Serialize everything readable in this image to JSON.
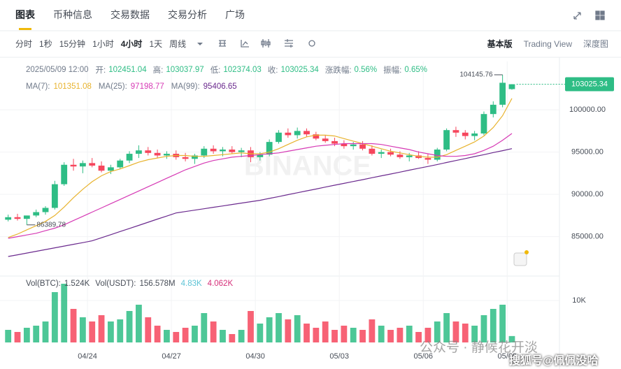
{
  "tabs": [
    "图表",
    "币种信息",
    "交易数据",
    "交易分析",
    "广场"
  ],
  "intervals": [
    "分时",
    "1秒",
    "15分钟",
    "1小时",
    "4小时",
    "1天",
    "周线"
  ],
  "views": [
    "基本版",
    "Trading View",
    "深度图"
  ],
  "info": {
    "date": "2025/05/09 12:00",
    "fields": [
      {
        "label": "开:",
        "value": "102451.04"
      },
      {
        "label": "高:",
        "value": "103037.97"
      },
      {
        "label": "低:",
        "value": "102374.03"
      },
      {
        "label": "收:",
        "value": "103025.34"
      },
      {
        "label": "涨跌幅:",
        "value": "0.56%"
      },
      {
        "label": "振幅:",
        "value": "0.65%"
      }
    ]
  },
  "vol_legend": [
    {
      "label": "Vol(BTC):",
      "value": "1.524K"
    },
    {
      "label": "Vol(USDT):",
      "value": "156.578M"
    },
    {
      "label": "",
      "value": "4.83K",
      "color": "#5ec4d6"
    },
    {
      "label": "",
      "value": "4.062K",
      "color": "#d6307a"
    }
  ],
  "watermark": "BINANCE",
  "footer_watermark": "公众号 · 静候花开淡",
  "footer_credit": "搜狐号@佩佩没哈",
  "chart_data": [
    {
      "type": "candlestick",
      "up_color": "#2ebd85",
      "down_color": "#f6465d",
      "open": [
        87000,
        87300,
        87100,
        87500,
        87900,
        88400,
        91200,
        93500,
        93300,
        93700,
        93400,
        92800,
        93200,
        94000,
        94800,
        95200,
        94900,
        94600,
        94800,
        94400,
        94200,
        94600,
        95400,
        95100,
        95300,
        95000,
        95200,
        94400,
        94700,
        96200,
        97300,
        97000,
        97500,
        97100,
        96600,
        96300,
        96000,
        95700,
        95900,
        95400,
        94800,
        95000,
        94700,
        94400,
        94600,
        94300,
        94100,
        95300,
        97600,
        97300,
        96900,
        97200,
        99500,
        100600,
        102451.04
      ],
      "high": [
        87600,
        87700,
        87400,
        88200,
        88600,
        91600,
        93800,
        94200,
        94000,
        94300,
        93900,
        93500,
        94200,
        95100,
        95800,
        95600,
        95300,
        95100,
        95200,
        94900,
        94800,
        95700,
        95800,
        95600,
        95700,
        95500,
        95600,
        95000,
        96500,
        97600,
        97800,
        97900,
        97800,
        97400,
        97000,
        96700,
        96400,
        96200,
        96300,
        95800,
        95300,
        95400,
        95100,
        94900,
        95100,
        94800,
        95500,
        97800,
        98000,
        97600,
        97500,
        99800,
        101000,
        104145.76,
        103037.97
      ],
      "low": [
        86800,
        86900,
        86389.78,
        87300,
        87600,
        88200,
        91000,
        92800,
        92500,
        93200,
        92600,
        92400,
        93000,
        93700,
        94300,
        94600,
        94300,
        94200,
        94100,
        93900,
        93600,
        94300,
        94800,
        94500,
        94800,
        94400,
        93800,
        94000,
        94500,
        96000,
        96700,
        96600,
        96800,
        96400,
        96100,
        95700,
        95400,
        95300,
        95200,
        94600,
        94300,
        94500,
        94200,
        93900,
        94200,
        93600,
        93900,
        95100,
        96800,
        96500,
        96400,
        97000,
        99100,
        100300,
        102374.03
      ],
      "close": [
        87300,
        87100,
        87500,
        87900,
        88400,
        91200,
        93500,
        93300,
        93700,
        93400,
        92800,
        93200,
        94000,
        94800,
        95200,
        94900,
        94600,
        94800,
        94400,
        94200,
        94600,
        95400,
        95100,
        95300,
        95000,
        95200,
        94400,
        94700,
        96200,
        97300,
        97000,
        97500,
        97100,
        96600,
        96300,
        96000,
        95700,
        95900,
        95400,
        94800,
        95000,
        94700,
        94400,
        94600,
        94300,
        94100,
        95300,
        97600,
        97300,
        96900,
        97200,
        99500,
        100600,
        103200,
        103025.34
      ],
      "series": [
        {
          "name": "MA(7):",
          "color": "#e8b32e",
          "values": [
            84900,
            85300,
            85800,
            86300,
            86800,
            87500,
            88500,
            89600,
            90600,
            91500,
            92200,
            92700,
            93000,
            93400,
            93800,
            94100,
            94300,
            94500,
            94600,
            94600,
            94500,
            94500,
            94600,
            94700,
            94800,
            94900,
            94800,
            94800,
            95000,
            95400,
            95900,
            96400,
            96800,
            97000,
            97000,
            96900,
            96600,
            96300,
            96000,
            95700,
            95400,
            95100,
            94900,
            94700,
            94500,
            94400,
            94400,
            94700,
            95200,
            95700,
            96200,
            96900,
            97900,
            99300,
            101351.08
          ],
          "value_label": "101351.08"
        },
        {
          "name": "MA(25):",
          "color": "#d63ab5",
          "values": [
            84800,
            85000,
            85200,
            85400,
            85700,
            86000,
            86400,
            86900,
            87400,
            87900,
            88400,
            88900,
            89400,
            89900,
            90400,
            90900,
            91400,
            91900,
            92400,
            92900,
            93300,
            93700,
            94000,
            94200,
            94400,
            94500,
            94600,
            94700,
            94800,
            94900,
            95100,
            95300,
            95500,
            95700,
            95800,
            95900,
            96000,
            96000,
            96000,
            96000,
            95900,
            95700,
            95500,
            95300,
            95000,
            94800,
            94600,
            94500,
            94500,
            94600,
            94800,
            95200,
            95700,
            96400,
            97198.77
          ],
          "value_label": "97198.77"
        },
        {
          "name": "MA(99):",
          "color": "#6b2a8e",
          "values": [
            82650,
            82850,
            83060,
            83260,
            83470,
            83680,
            83880,
            84090,
            84290,
            84500,
            84870,
            85230,
            85600,
            85970,
            86330,
            86700,
            87070,
            87430,
            87800,
            87970,
            88130,
            88300,
            88470,
            88630,
            88800,
            88970,
            89130,
            89300,
            89520,
            89740,
            89970,
            90190,
            90410,
            90630,
            90860,
            91080,
            91300,
            91520,
            91740,
            91970,
            92190,
            92410,
            92630,
            92860,
            93080,
            93300,
            93530,
            93770,
            94000,
            94230,
            94470,
            94700,
            94940,
            95170,
            95406.65
          ],
          "value_label": "95406.65"
        }
      ],
      "current_label": "103025.34",
      "high_label": "104145.76",
      "low_label": "86389.78",
      "ylim": [
        80750,
        105550
      ],
      "yticks": [
        {
          "value": 85000,
          "label": "85000.00"
        },
        {
          "value": 90000,
          "label": "90000.00"
        },
        {
          "value": 95000,
          "label": "95000.00"
        },
        {
          "value": 100000,
          "label": "100000.00"
        }
      ],
      "xlim": [
        0,
        59.6
      ],
      "xticks": [
        {
          "value": 9,
          "label": "04/24"
        },
        {
          "value": 18,
          "label": "04/27"
        },
        {
          "value": 27,
          "label": "04/30"
        },
        {
          "value": 36,
          "label": "05/03"
        },
        {
          "value": 45,
          "label": "05/06"
        },
        {
          "value": 54,
          "label": "05/09"
        }
      ]
    },
    {
      "type": "bar",
      "values": [
        3000,
        2500,
        3500,
        4000,
        5000,
        12000,
        14000,
        8000,
        6000,
        5000,
        6500,
        5000,
        5500,
        7500,
        9000,
        6000,
        4000,
        3000,
        2500,
        3500,
        4000,
        7000,
        5000,
        3000,
        2000,
        3000,
        7500,
        4500,
        6000,
        7000,
        5500,
        6500,
        4500,
        3500,
        5000,
        3000,
        4000,
        3500,
        3000,
        5500,
        4000,
        3000,
        3500,
        4000,
        2500,
        3500,
        5000,
        7000,
        5000,
        4500,
        4000,
        6500,
        8000,
        9000,
        1524
      ],
      "ylim": [
        0,
        15000
      ],
      "yticks": [
        {
          "value": 10000,
          "label": "10K"
        }
      ]
    }
  ]
}
